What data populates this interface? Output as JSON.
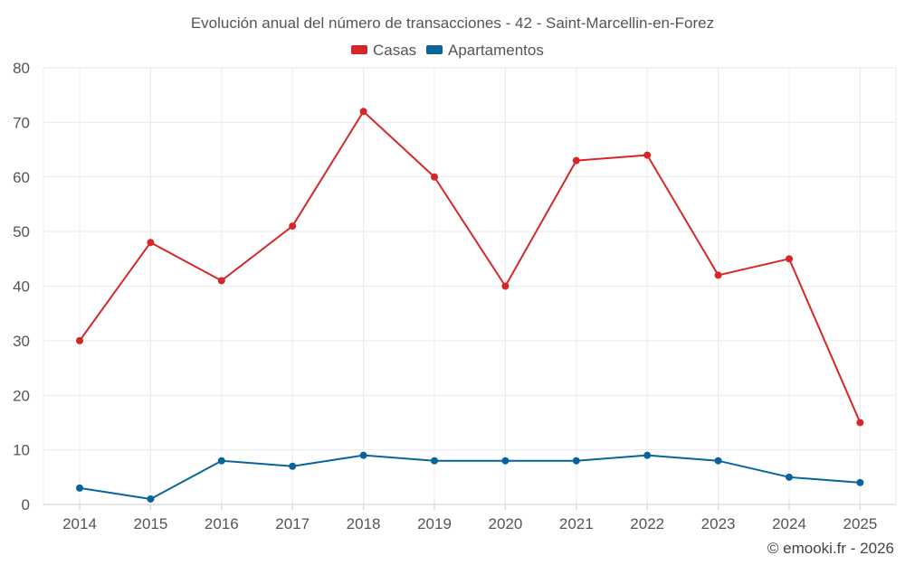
{
  "chart_data": {
    "type": "line",
    "title": "Evolución anual del número de transacciones - 42 - Saint-Marcellin-en-Forez",
    "categories": [
      "2014",
      "2015",
      "2016",
      "2017",
      "2018",
      "2019",
      "2020",
      "2021",
      "2022",
      "2023",
      "2024",
      "2025"
    ],
    "series": [
      {
        "name": "Casas",
        "color": "#d62728",
        "values": [
          30,
          48,
          41,
          51,
          72,
          60,
          40,
          63,
          64,
          42,
          45,
          15
        ]
      },
      {
        "name": "Apartamentos",
        "color": "#08649c",
        "values": [
          3,
          1,
          8,
          7,
          9,
          8,
          8,
          8,
          9,
          8,
          5,
          4
        ]
      }
    ],
    "ylim": [
      0,
      80
    ],
    "yticks": [
      0,
      10,
      20,
      30,
      40,
      50,
      60,
      70,
      80
    ],
    "xlabel": "",
    "ylabel": "",
    "legend_position": "top-center",
    "grid": true
  },
  "credit": "© emooki.fr - 2026"
}
